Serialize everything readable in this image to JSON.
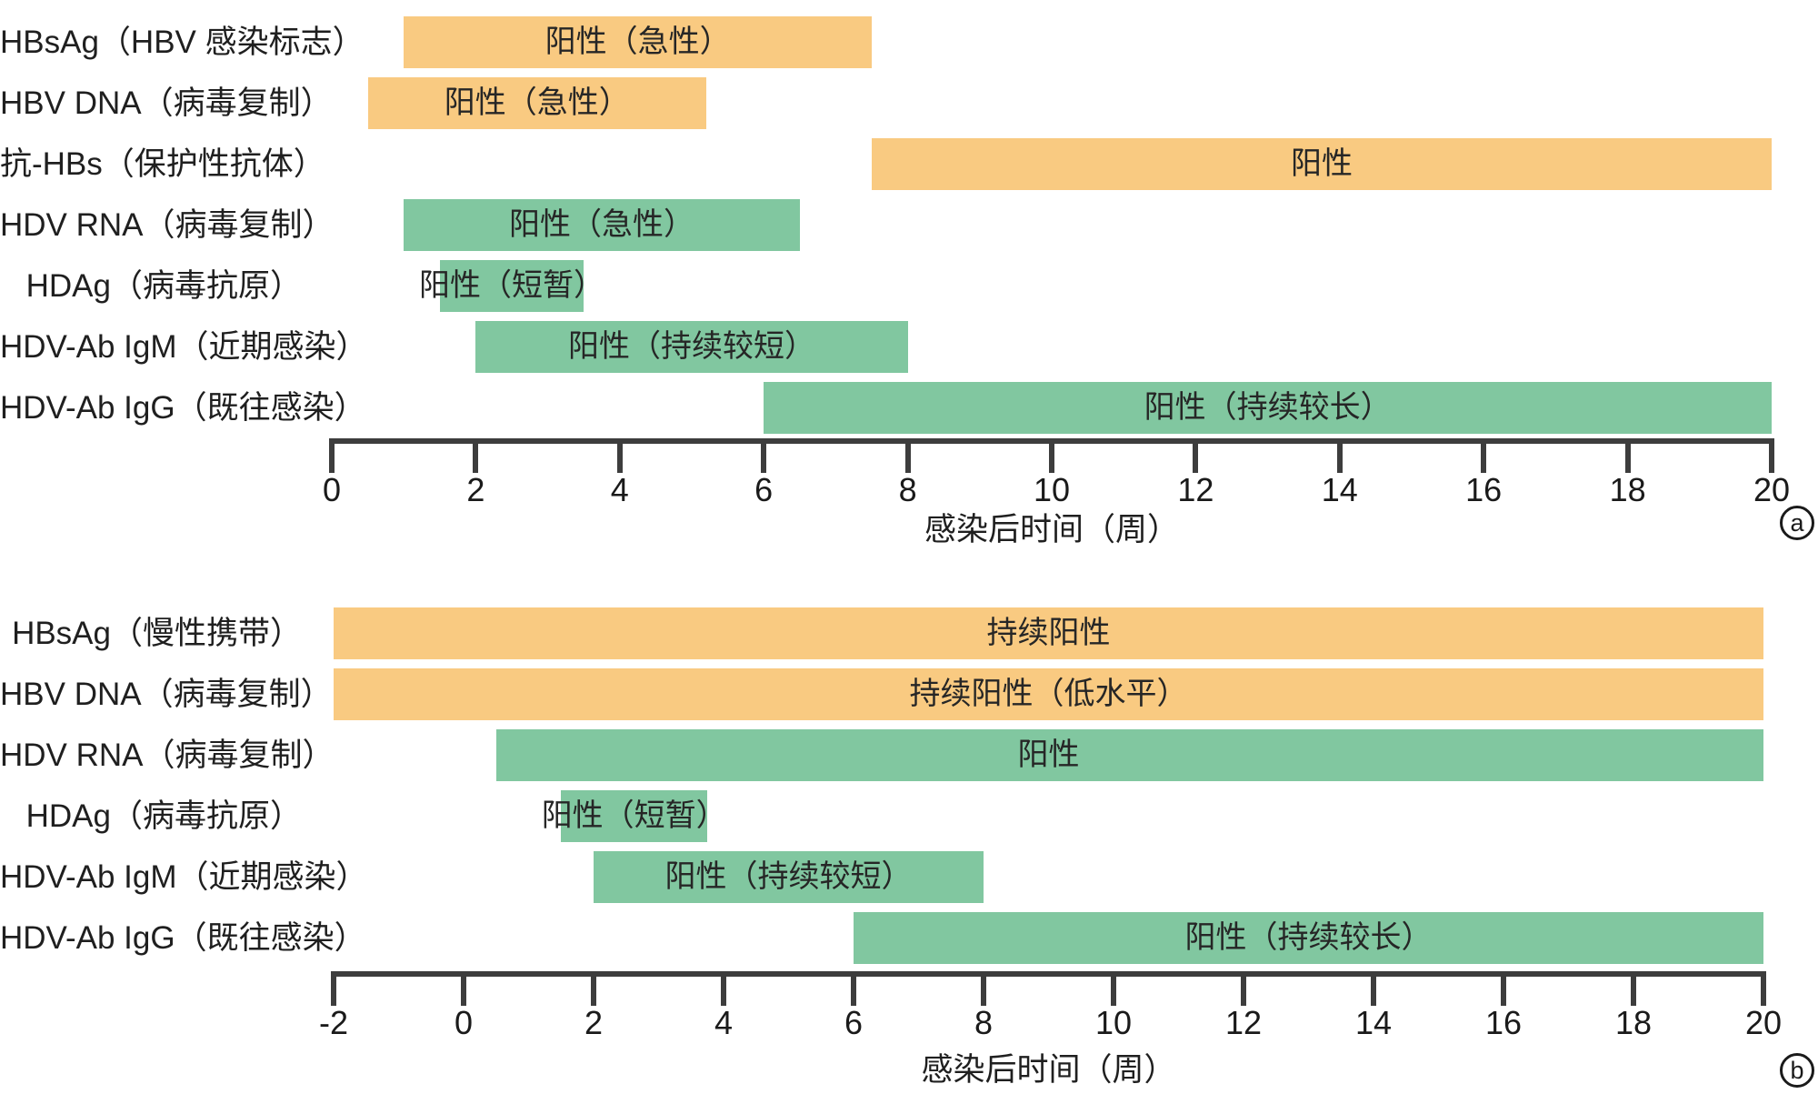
{
  "colors": {
    "hbv_marker_fill": "#F9CA81",
    "hdv_marker_fill": "#81C7A0",
    "text": "#1f1f1f",
    "axis": "#3d3d3d"
  },
  "chart_data": {
    "type": "bar",
    "subtype": "horizontal-interval-timeline",
    "grid": false,
    "legend": "none",
    "ylabel": "",
    "panels": [
      {
        "panel_label": "a",
        "xlabel": "感染后时间（周）",
        "xlim": [
          0,
          20
        ],
        "xticks": [
          0,
          2,
          4,
          6,
          8,
          10,
          12,
          14,
          16,
          18,
          20
        ],
        "rows": [
          {
            "category": "HBsAg（HBV 感染标志）",
            "start_week": 1,
            "end_week": 7.5,
            "color": "#F9CA81",
            "bar_label": "阳性（急性）"
          },
          {
            "category": "HBV DNA（病毒复制）",
            "start_week": 0.5,
            "end_week": 5.2,
            "color": "#F9CA81",
            "bar_label": "阳性（急性）"
          },
          {
            "category": "抗-HBs（保护性抗体）",
            "start_week": 7.5,
            "end_week": 20,
            "color": "#F9CA81",
            "bar_label": "阳性"
          },
          {
            "category": "HDV RNA（病毒复制）",
            "start_week": 1,
            "end_week": 6.5,
            "color": "#81C7A0",
            "bar_label": "阳性（急性）"
          },
          {
            "category": "HDAg（病毒抗原）",
            "start_week": 1.5,
            "end_week": 3.5,
            "color": "#81C7A0",
            "bar_label": "阳性（短暂）"
          },
          {
            "category": "HDV-Ab IgM（近期感染）",
            "start_week": 2,
            "end_week": 8,
            "color": "#81C7A0",
            "bar_label": "阳性（持续较短）"
          },
          {
            "category": "HDV-Ab IgG（既往感染）",
            "start_week": 6,
            "end_week": 20,
            "color": "#81C7A0",
            "bar_label": "阳性（持续较长）"
          }
        ]
      },
      {
        "panel_label": "b",
        "xlabel": "感染后时间（周）",
        "xlim": [
          -2,
          20
        ],
        "xticks": [
          -2,
          0,
          2,
          4,
          6,
          8,
          10,
          12,
          14,
          16,
          18,
          20
        ],
        "rows": [
          {
            "category": "HBsAg（慢性携带）",
            "start_week": -2,
            "end_week": 20,
            "color": "#F9CA81",
            "bar_label": "持续阳性"
          },
          {
            "category": "HBV DNA（病毒复制）",
            "start_week": -2,
            "end_week": 20,
            "color": "#F9CA81",
            "bar_label": "持续阳性（低水平）"
          },
          {
            "category": "HDV RNA（病毒复制）",
            "start_week": 0.5,
            "end_week": 20,
            "color": "#81C7A0",
            "bar_label": "阳性",
            "label_week": 9
          },
          {
            "category": "HDAg（病毒抗原）",
            "start_week": 1.5,
            "end_week": 3.75,
            "color": "#81C7A0",
            "bar_label": "阳性（短暂）"
          },
          {
            "category": "HDV-Ab IgM（近期感染）",
            "start_week": 2,
            "end_week": 8,
            "color": "#81C7A0",
            "bar_label": "阳性（持续较短）"
          },
          {
            "category": "HDV-Ab IgG（既往感染）",
            "start_week": 6,
            "end_week": 20,
            "color": "#81C7A0",
            "bar_label": "阳性（持续较长）"
          }
        ]
      }
    ]
  }
}
